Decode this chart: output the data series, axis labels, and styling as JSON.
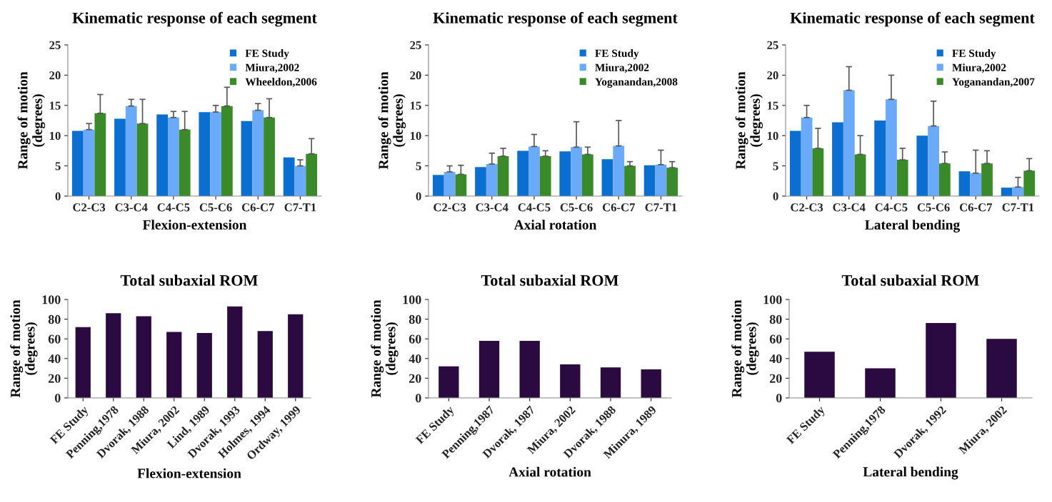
{
  "chart_data": [
    {
      "type": "bar",
      "title": "Kinematic response of each segment",
      "xlabel": "Flexion-extension",
      "ylabel": "Range of motion\n(degrees)",
      "categories": [
        "C2-C3",
        "C3-C4",
        "C4-C5",
        "C5-C6",
        "C6-C7",
        "C7-T1"
      ],
      "ylim": [
        0,
        25
      ],
      "yticks": [
        0,
        5,
        10,
        15,
        20,
        25
      ],
      "legend": "top right",
      "grid": false,
      "series": [
        {
          "name": "FE Study",
          "color": "#0a6fd0",
          "values": [
            10.8,
            12.8,
            13.5,
            13.9,
            12.4,
            6.4
          ]
        },
        {
          "name": "Miura,2002",
          "color": "#6aaaf8",
          "values": [
            11.0,
            14.9,
            13.0,
            13.9,
            14.2,
            5.0
          ],
          "errors": [
            [
              11.0,
              12.0
            ],
            [
              14.9,
              16.0
            ],
            [
              13.0,
              14.0
            ],
            [
              13.9,
              15.0
            ],
            [
              14.2,
              15.3
            ],
            [
              5.0,
              6.0
            ]
          ]
        },
        {
          "name": "Wheeldon,2006",
          "color": "#3a8a2a",
          "values": [
            13.7,
            12.0,
            11.0,
            14.9,
            13.0,
            7.0
          ],
          "errors": [
            [
              13.7,
              16.8
            ],
            [
              12.0,
              16.0
            ],
            [
              11.0,
              14.0
            ],
            [
              14.9,
              18.0
            ],
            [
              13.0,
              16.1
            ],
            [
              7.0,
              9.5
            ]
          ]
        }
      ]
    },
    {
      "type": "bar",
      "title": "Kinematic response of each segment",
      "xlabel": "Axial rotation",
      "ylabel": "Range of motion\n(degrees)",
      "categories": [
        "C2-C3",
        "C3-C4",
        "C4-C5",
        "C5-C6",
        "C6-C7",
        "C7-T1"
      ],
      "ylim": [
        0,
        25
      ],
      "yticks": [
        0,
        5,
        10,
        15,
        20,
        25
      ],
      "legend": "top right",
      "grid": false,
      "series": [
        {
          "name": "FE Study",
          "color": "#0a6fd0",
          "values": [
            3.5,
            4.8,
            7.5,
            7.4,
            6.1,
            5.1
          ]
        },
        {
          "name": "Miura,2002",
          "color": "#6aaaf8",
          "values": [
            4.0,
            5.3,
            8.2,
            8.1,
            8.3,
            5.2
          ],
          "errors": [
            [
              4.0,
              5.0
            ],
            [
              5.3,
              7.1
            ],
            [
              8.2,
              10.2
            ],
            [
              8.1,
              12.3
            ],
            [
              8.3,
              12.5
            ],
            [
              5.2,
              7.6
            ]
          ]
        },
        {
          "name": "Yoganandan,2008",
          "color": "#3a8a2a",
          "values": [
            3.6,
            6.6,
            6.6,
            6.9,
            5.0,
            4.7
          ],
          "errors": [
            [
              3.6,
              5.1
            ],
            [
              6.6,
              7.9
            ],
            [
              6.6,
              7.5
            ],
            [
              6.9,
              8.1
            ],
            [
              5.0,
              5.7
            ],
            [
              4.7,
              5.7
            ]
          ]
        }
      ]
    },
    {
      "type": "bar",
      "title": "Kinematic response of each segment",
      "xlabel": "Lateral bending",
      "ylabel": "Range of motion\n(degrees)",
      "categories": [
        "C2-C3",
        "C3-C4",
        "C4-C5",
        "C5-C6",
        "C6-C7",
        "C7-T1"
      ],
      "ylim": [
        0,
        25
      ],
      "yticks": [
        0,
        5,
        10,
        15,
        20,
        25
      ],
      "legend": "top right",
      "grid": false,
      "series": [
        {
          "name": "FE Study",
          "color": "#0a6fd0",
          "values": [
            10.8,
            12.2,
            12.5,
            10.0,
            4.1,
            1.4
          ]
        },
        {
          "name": "Miura,2002",
          "color": "#6aaaf8",
          "values": [
            13.0,
            17.5,
            16.0,
            11.6,
            3.8,
            1.5
          ],
          "errors": [
            [
              13.0,
              15.0
            ],
            [
              17.5,
              21.4
            ],
            [
              16.0,
              20.0
            ],
            [
              11.6,
              15.7
            ],
            [
              3.8,
              7.6
            ],
            [
              1.5,
              3.1
            ]
          ]
        },
        {
          "name": "Yoganandan,2007",
          "color": "#3a8a2a",
          "values": [
            7.9,
            6.9,
            6.0,
            5.4,
            5.4,
            4.2
          ],
          "errors": [
            [
              7.9,
              11.2
            ],
            [
              6.9,
              10.0
            ],
            [
              6.0,
              7.9
            ],
            [
              5.4,
              7.3
            ],
            [
              5.4,
              7.5
            ],
            [
              4.2,
              6.2
            ]
          ]
        }
      ]
    },
    {
      "type": "bar",
      "title": "Total subaxial ROM",
      "xlabel": "Flexion-extension",
      "ylabel": "Range of motion\n(degrees)",
      "categories": [
        "FE Study",
        "Penning,1978",
        "Dvorak, 1988",
        "Miura, 2002",
        "Lind, 1989",
        "Dvorak, 1993",
        "Holmes, 1994",
        "Ordway, 1999"
      ],
      "values": [
        72,
        86,
        83,
        67,
        66,
        93,
        68,
        85
      ],
      "color": "#2a0a40",
      "ylim": [
        0,
        100
      ],
      "yticks": [
        0,
        20,
        40,
        60,
        80,
        100
      ],
      "grid": false
    },
    {
      "type": "bar",
      "title": "Total subaxial ROM",
      "xlabel": "Axial rotation",
      "ylabel": "Range of motion\n(degrees)",
      "categories": [
        "FE Study",
        "Penning,1987",
        "Dvorak, 1987",
        "Miura, 2002",
        "Dvorak, 1988",
        "Minura, 1989"
      ],
      "values": [
        32,
        58,
        58,
        34,
        31,
        29
      ],
      "color": "#2a0a40",
      "ylim": [
        0,
        100
      ],
      "yticks": [
        0,
        20,
        40,
        60,
        80,
        100
      ],
      "grid": false
    },
    {
      "type": "bar",
      "title": "Total subaxial ROM",
      "xlabel": "Lateral bending",
      "ylabel": "Range of motion\n(degrees)",
      "categories": [
        "FE Study",
        "Penning,1978",
        "Dvorak, 1992",
        "Miura, 2002"
      ],
      "values": [
        47,
        30,
        76,
        60
      ],
      "color": "#2a0a40",
      "ylim": [
        0,
        100
      ],
      "yticks": [
        0,
        20,
        40,
        60,
        80,
        100
      ],
      "grid": false
    }
  ]
}
